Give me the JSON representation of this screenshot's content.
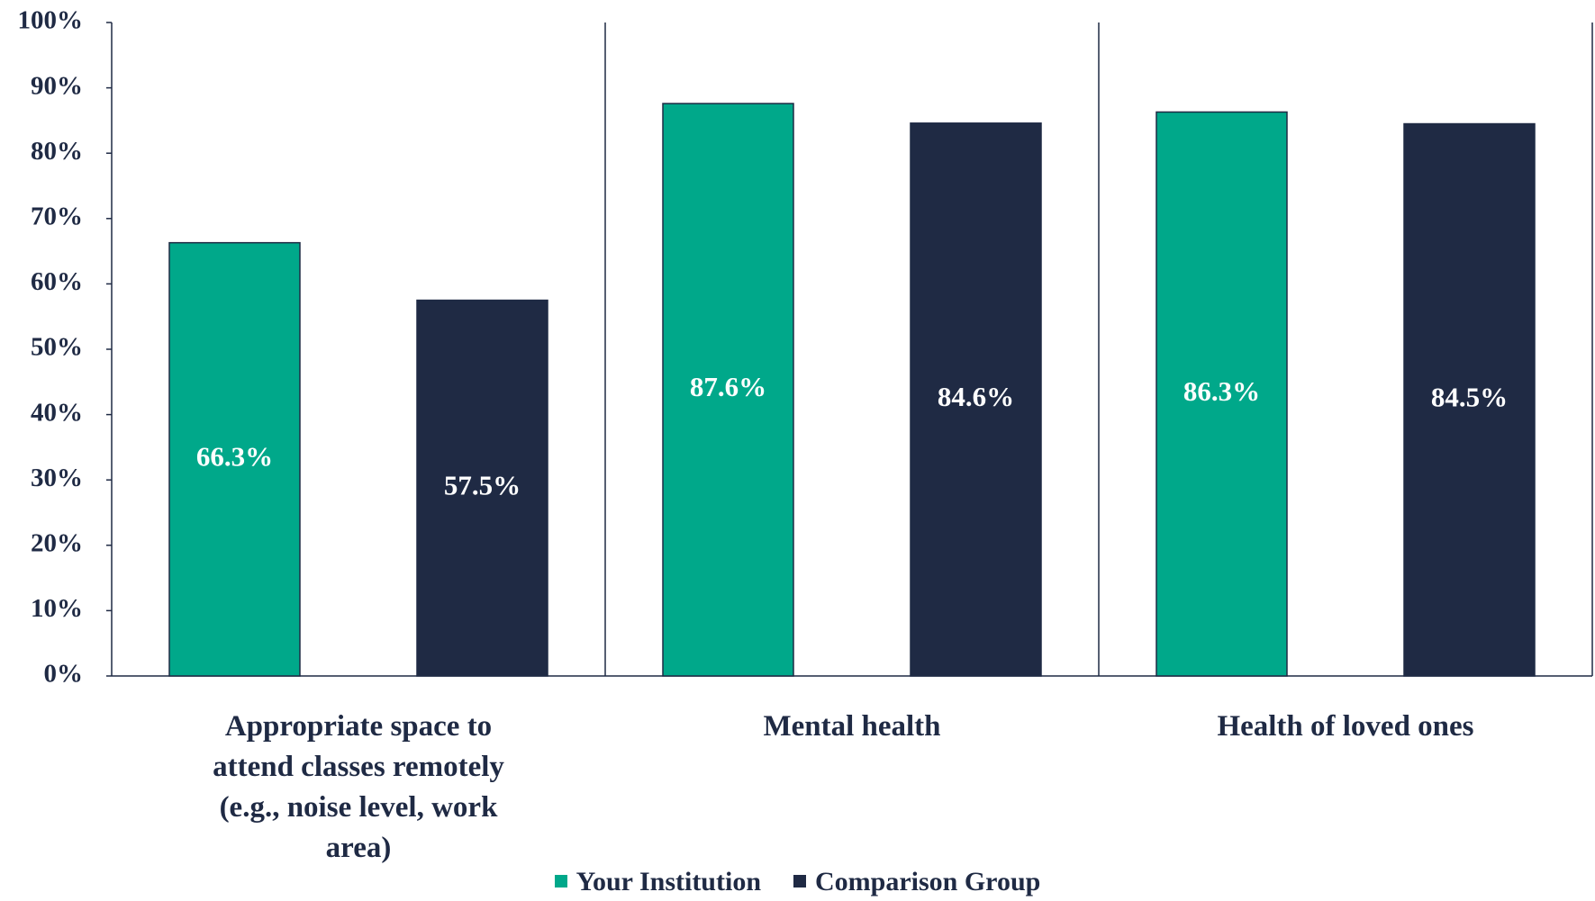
{
  "chart_data": {
    "type": "bar",
    "categories": [
      "Appropriate space to attend classes remotely (e.g., noise level, work area)",
      "Mental health",
      "Health of loved ones"
    ],
    "series": [
      {
        "name": "Your Institution",
        "color": "#00a88a",
        "values": [
          66.3,
          87.6,
          86.3
        ],
        "value_labels": [
          "66.3%",
          "87.6%",
          "86.3%"
        ]
      },
      {
        "name": "Comparison Group",
        "color": "#1f2a44",
        "values": [
          57.5,
          84.6,
          84.5
        ],
        "value_labels": [
          "57.5%",
          "84.6%",
          "84.5%"
        ]
      }
    ],
    "ylim": [
      0,
      100
    ],
    "yticks": [
      {
        "value": 0,
        "label": "0%"
      },
      {
        "value": 10,
        "label": "10%"
      },
      {
        "value": 20,
        "label": "20%"
      },
      {
        "value": 30,
        "label": "30%"
      },
      {
        "value": 40,
        "label": "40%"
      },
      {
        "value": 50,
        "label": "50%"
      },
      {
        "value": 60,
        "label": "60%"
      },
      {
        "value": 70,
        "label": "70%"
      },
      {
        "value": 80,
        "label": "80%"
      },
      {
        "value": 90,
        "label": "90%"
      },
      {
        "value": 100,
        "label": "100%"
      }
    ],
    "legend": "bottom"
  }
}
